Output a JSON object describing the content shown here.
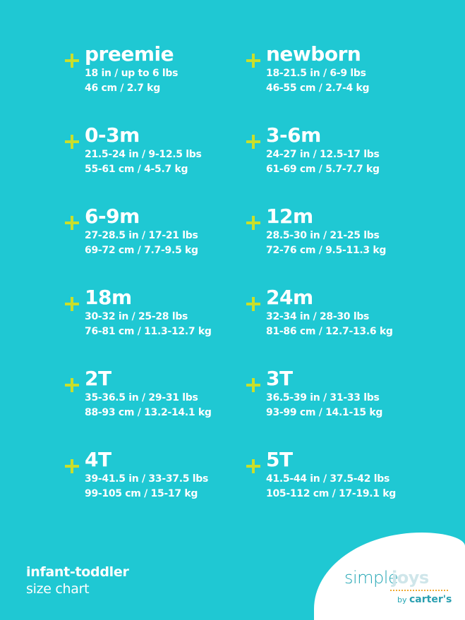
{
  "colors": {
    "background": "#1fc8d3",
    "plus": "#c9df2b",
    "text": "#ffffff"
  },
  "sizes": [
    {
      "name": "preemie",
      "imperial": "18 in / up to 6 lbs",
      "metric": "46 cm / 2.7 kg"
    },
    {
      "name": "newborn",
      "imperial": "18-21.5 in / 6-9 lbs",
      "metric": "46-55 cm / 2.7-4 kg"
    },
    {
      "name": "0-3m",
      "imperial": "21.5-24 in / 9-12.5 lbs",
      "metric": "55-61 cm / 4-5.7 kg"
    },
    {
      "name": "3-6m",
      "imperial": "24-27 in / 12.5-17 lbs",
      "metric": "61-69 cm / 5.7-7.7 kg"
    },
    {
      "name": "6-9m",
      "imperial": "27-28.5 in / 17-21 lbs",
      "metric": "69-72 cm / 7.7-9.5 kg"
    },
    {
      "name": "12m",
      "imperial": "28.5-30 in / 21-25 lbs",
      "metric": "72-76 cm / 9.5-11.3 kg"
    },
    {
      "name": "18m",
      "imperial": "30-32 in / 25-28 lbs",
      "metric": "76-81 cm / 11.3-12.7 kg"
    },
    {
      "name": "24m",
      "imperial": "32-34 in / 28-30 lbs",
      "metric": "81-86 cm / 12.7-13.6 kg"
    },
    {
      "name": "2T",
      "imperial": "35-36.5 in / 29-31 lbs",
      "metric": "88-93 cm / 13.2-14.1 kg"
    },
    {
      "name": "3T",
      "imperial": "36.5-39 in / 31-33 lbs",
      "metric": "93-99 cm / 14.1-15 kg"
    },
    {
      "name": "4T",
      "imperial": "39-41.5 in / 33-37.5 lbs",
      "metric": "99-105 cm / 15-17 kg"
    },
    {
      "name": "5T",
      "imperial": "41.5-44 in / 37.5-42 lbs",
      "metric": "105-112 cm / 17-19.1 kg"
    }
  ],
  "footer": {
    "title": "infant-toddler",
    "subtitle": "size chart"
  },
  "logo": {
    "simple": "simple",
    "joys": "joys",
    "by": "by",
    "carters": "carter's"
  }
}
